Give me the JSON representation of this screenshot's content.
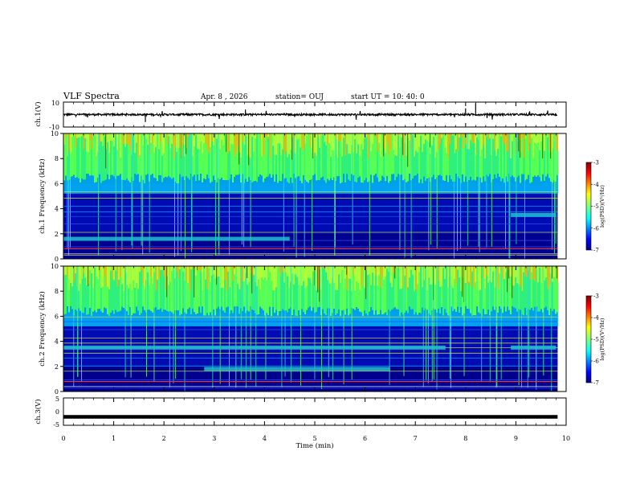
{
  "header": {
    "title": "VLF Spectra",
    "date": "Apr. 8  , 2026",
    "station": "station= OUJ",
    "start": "start  UT  =   10: 40: 0"
  },
  "chart_data": [
    {
      "type": "line",
      "panel": "waveform-ch1",
      "ylabel": "ch.1(V)",
      "ylim": [
        -10,
        10
      ],
      "yticks": [
        "10",
        "-10"
      ],
      "x_range_min": [
        0,
        9.83
      ],
      "level": 0,
      "description_values": {
        "baseline_V": 0
      }
    },
    {
      "type": "heatmap",
      "panel": "spectrogram-ch1",
      "ylabel": "ch.1 Frequency (kHz)",
      "ylim": [
        0,
        10
      ],
      "yticks": [
        "0",
        "2",
        "4",
        "6",
        "8",
        "10"
      ],
      "noise_floor_top_kHz": 6.0,
      "bands": [
        {
          "from_min": 0,
          "to_min": 4.5,
          "freq_kHz": 1.6
        },
        {
          "from_min": 8.9,
          "to_min": 9.8,
          "freq_kHz": 3.5
        }
      ],
      "colorbar": {
        "label": "log(PSD)(V²/Hz)",
        "ticks": [
          "-3",
          "-4",
          "-5",
          "-6",
          "-7"
        ],
        "range": [
          -7,
          -3
        ]
      }
    },
    {
      "type": "heatmap",
      "panel": "spectrogram-ch2",
      "ylabel": "ch.2 Frequency (kHz)",
      "ylim": [
        0,
        10
      ],
      "yticks": [
        "0",
        "2",
        "4",
        "6",
        "8",
        "10"
      ],
      "noise_floor_top_kHz": 6.2,
      "bands": [
        {
          "from_min": 0,
          "to_min": 7.6,
          "freq_kHz": 3.5
        },
        {
          "from_min": 2.8,
          "to_min": 6.5,
          "freq_kHz": 1.8
        },
        {
          "from_min": 8.9,
          "to_min": 9.8,
          "freq_kHz": 3.5
        }
      ],
      "colorbar": {
        "label": "log(PSD)(V²/Hz)",
        "ticks": [
          "-3",
          "-4",
          "-5",
          "-6",
          "-7"
        ],
        "range": [
          -7,
          -3
        ]
      }
    },
    {
      "type": "line",
      "panel": "waveform-ch3",
      "ylabel": "ch.3(V)",
      "ylim": [
        -5,
        5
      ],
      "yticks": [
        "5",
        "0",
        "-5"
      ],
      "x_range_min": [
        0,
        9.83
      ],
      "level": -0.5
    }
  ],
  "x_axis": {
    "label": "Time  (min)",
    "ticks": [
      "0",
      "1",
      "2",
      "3",
      "4",
      "5",
      "6",
      "7",
      "8",
      "9",
      "10"
    ],
    "range": [
      0,
      10
    ]
  },
  "colors": {
    "jet": [
      "#00007f",
      "#0000ff",
      "#007fff",
      "#00ffff",
      "#7fff7f",
      "#ffff00",
      "#ff7f00",
      "#ff0000",
      "#7f0000"
    ]
  }
}
